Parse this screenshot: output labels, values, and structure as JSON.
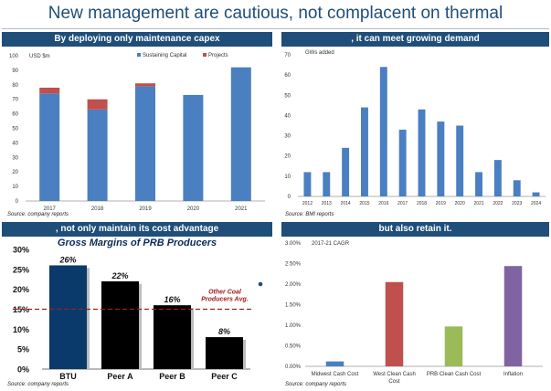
{
  "page": {
    "title": "New management are cautious, not complacent on thermal"
  },
  "panels": {
    "tl": {
      "header": "By deploying only maintenance capex",
      "source": "Source: company reports"
    },
    "tr": {
      "header": ", it can meet growing demand",
      "source": "Source: BMI reports"
    },
    "bl": {
      "header": ", not only maintain its cost advantage",
      "source": "Source: company reports"
    },
    "br": {
      "header": "but also retain it.",
      "source": "Source: company reports"
    }
  },
  "chart_data": [
    {
      "id": "capex",
      "type": "bar",
      "stacked": true,
      "unit_label": "USD $m",
      "categories": [
        "2017",
        "2018",
        "2019",
        "2020",
        "2021"
      ],
      "series": [
        {
          "name": "Sustaining Capital",
          "color": "#4a7fc1",
          "values": [
            74,
            63,
            79,
            73,
            92
          ]
        },
        {
          "name": "Projects",
          "color": "#c0504d",
          "values": [
            4,
            7,
            2,
            0,
            0
          ]
        }
      ],
      "ylim": [
        0,
        100
      ],
      "yticks": [
        0,
        10,
        20,
        30,
        40,
        50,
        60,
        70,
        80,
        90,
        100
      ],
      "legend": "top-right",
      "grid": false
    },
    {
      "id": "gw_added",
      "type": "bar",
      "unit_label": "GWs added",
      "categories": [
        "2012",
        "2013",
        "2014",
        "2015",
        "2016",
        "2017",
        "2018",
        "2019",
        "2020",
        "2021",
        "2022",
        "2023",
        "2024"
      ],
      "values": [
        12,
        12,
        24,
        44,
        64,
        33,
        43,
        37,
        35,
        12,
        18,
        8,
        2
      ],
      "color": "#4a7fc1",
      "ylim": [
        0,
        70
      ],
      "yticks": [
        0,
        10,
        20,
        30,
        40,
        50,
        60,
        70
      ],
      "grid": false
    },
    {
      "id": "gross_margins",
      "type": "bar",
      "title": "Gross Margins of PRB Producers",
      "categories": [
        "BTU",
        "Peer A",
        "Peer B",
        "Peer C"
      ],
      "values": [
        26,
        22,
        16,
        8
      ],
      "data_labels": [
        "26%",
        "22%",
        "16%",
        "8%"
      ],
      "colors": [
        "#0a3a6b",
        "#000000",
        "#000000",
        "#000000"
      ],
      "reference_line": {
        "value": 15,
        "label_line1": "Other Coal",
        "label_line2": "Producers Avg.",
        "color": "#a01c1c"
      },
      "ylim": [
        0,
        30
      ],
      "ytick_labels": [
        "0%",
        "5%",
        "10%",
        "15%",
        "20%",
        "25%",
        "30%"
      ],
      "grid": false
    },
    {
      "id": "cagr",
      "type": "bar",
      "unit_label": "2017-21 CAGR",
      "categories": [
        "Midwest Cash Cost",
        "West Clean Cash Cost",
        "PRB Clean Cash Cost",
        "Inflation"
      ],
      "category_lines": [
        [
          "Midwest Cash Cost"
        ],
        [
          "West Clean Cash",
          "Cost"
        ],
        [
          "PRB Clean Cash Cost"
        ],
        [
          "Inflation"
        ]
      ],
      "values": [
        0.12,
        2.05,
        0.97,
        2.44
      ],
      "colors": [
        "#4a7fc1",
        "#c0504d",
        "#9bbb59",
        "#8064a2"
      ],
      "ylim": [
        0,
        3
      ],
      "ytick_labels": [
        "0.00%",
        "0.50%",
        "1.00%",
        "1.50%",
        "2.00%",
        "2.50%",
        "3.00%"
      ],
      "grid": false
    }
  ]
}
